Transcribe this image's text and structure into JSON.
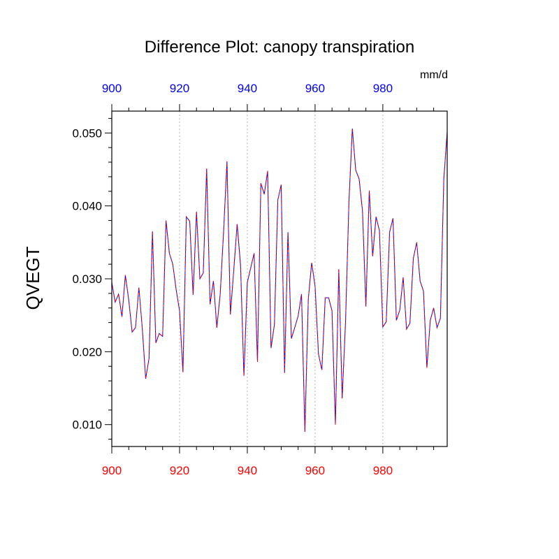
{
  "chart_data": {
    "type": "line",
    "title": "Difference Plot: canopy transpiration",
    "ylabel": "QVEGT",
    "units": "mm/d",
    "xlim": [
      900,
      999
    ],
    "ylim": [
      0.007,
      0.053
    ],
    "x_ticks": [
      900,
      920,
      940,
      960,
      980
    ],
    "y_ticks": [
      0.01,
      0.02,
      0.03,
      0.04,
      0.05
    ],
    "y_tick_labels": [
      "0.010",
      "0.020",
      "0.030",
      "0.040",
      "0.050"
    ],
    "grid": "vertical dotted at major x ticks",
    "colors": {
      "top_axis_labels": "#0000ff",
      "bottom_axis_labels": "#ff0000",
      "series_line_1": "#0000ff",
      "series_line_2": "#ff0000"
    },
    "x_start": 900,
    "x_step": 1,
    "series": [
      {
        "values": [
          0.0295,
          0.0268,
          0.0279,
          0.0248,
          0.0305,
          0.0271,
          0.0227,
          0.0233,
          0.0288,
          0.0232,
          0.0163,
          0.0191,
          0.0365,
          0.0212,
          0.0225,
          0.0221,
          0.038,
          0.0335,
          0.032,
          0.0285,
          0.0256,
          0.0172,
          0.0385,
          0.0379,
          0.0278,
          0.0392,
          0.03,
          0.0308,
          0.0451,
          0.0265,
          0.0297,
          0.0233,
          0.0279,
          0.0365,
          0.0461,
          0.0251,
          0.0312,
          0.0375,
          0.0319,
          0.0167,
          0.0295,
          0.0315,
          0.0335,
          0.0186,
          0.0431,
          0.0416,
          0.0448,
          0.0205,
          0.0237,
          0.0408,
          0.0429,
          0.0171,
          0.0364,
          0.0218,
          0.0233,
          0.0249,
          0.0279,
          0.009,
          0.0272,
          0.0322,
          0.029,
          0.0197,
          0.0175,
          0.0274,
          0.0274,
          0.0256,
          0.01,
          0.0313,
          0.0136,
          0.0242,
          0.0406,
          0.0506,
          0.0449,
          0.0437,
          0.0393,
          0.0262,
          0.0421,
          0.0331,
          0.0385,
          0.0366,
          0.0234,
          0.0241,
          0.0364,
          0.0383,
          0.0243,
          0.0257,
          0.0302,
          0.0231,
          0.0239,
          0.0328,
          0.035,
          0.0297,
          0.0283,
          0.0178,
          0.0243,
          0.026,
          0.0233,
          0.0246,
          0.0437,
          0.0502
        ]
      }
    ]
  }
}
